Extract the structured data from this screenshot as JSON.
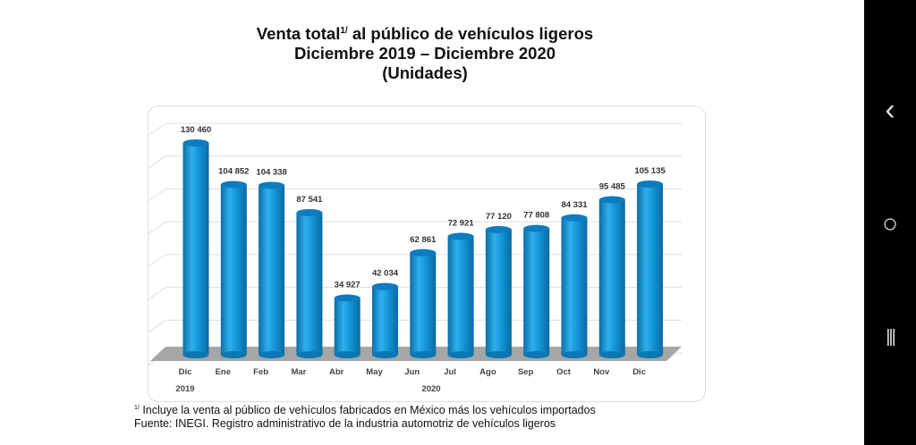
{
  "chart_data": {
    "type": "bar",
    "title_line1": "Venta total",
    "title_sup": "1/",
    "title_line1_rest": " al público de vehículos ligeros",
    "title_line2": "Diciembre 2019 – Diciembre 2020",
    "title_line3": "(Unidades)",
    "categories": [
      "Dic",
      "Ene",
      "Feb",
      "Mar",
      "Abr",
      "May",
      "Jun",
      "Jul",
      "Ago",
      "Sep",
      "Oct",
      "Nov",
      "Dic"
    ],
    "values": [
      130460,
      104852,
      104338,
      87541,
      34927,
      42034,
      62861,
      72921,
      77120,
      77808,
      84331,
      95485,
      105135
    ],
    "value_labels": [
      "130 460",
      "104 852",
      "104 338",
      "87 541",
      "34 927",
      "42 034",
      "62 861",
      "72 921",
      "77 120",
      "77 808",
      "84 331",
      "95 485",
      "105 135"
    ],
    "year_labels": {
      "first": "2019",
      "second": "2020"
    },
    "ylim": [
      0,
      140000
    ],
    "grid": true,
    "bar_color": "#1496d8",
    "floor_color": "#a6a6a6"
  },
  "notes": {
    "footnote_mark": "1/",
    "footnote": " Incluye la venta al público de vehículos fabricados en México más los vehículos importados",
    "source": "Fuente: INEGI. Registro administrativo de la industria automotriz de vehículos ligeros"
  },
  "nav": {
    "back": "‹",
    "home": "○",
    "recents": "|||"
  }
}
